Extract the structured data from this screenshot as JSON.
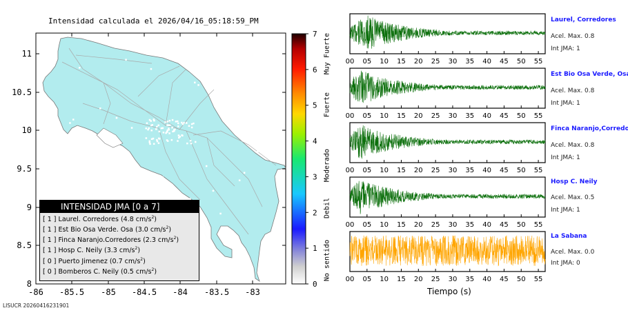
{
  "map": {
    "title": "Intensidad calculada el 2026/04/16_05:18:59_PM",
    "x_ticks": [
      "-86",
      "-85.5",
      "-85",
      "-84.5",
      "-84",
      "-83.5",
      "-83"
    ],
    "y_ticks": [
      "11",
      "10.5",
      "10",
      "9.5",
      "9",
      "8.5",
      "8"
    ],
    "land_color": "#b2ecee"
  },
  "colorbar": {
    "ticks": [
      "0",
      "1",
      "2",
      "3",
      "4",
      "5",
      "6",
      "7"
    ],
    "labels": [
      "No sentido",
      "Debil",
      "Moderado",
      "Fuerte",
      "Muy Fuerte"
    ]
  },
  "legend": {
    "title": "INTENSIDAD JMA [0 a 7]",
    "rows": [
      {
        "jma": "[ 1 ]",
        "text": "Laurel. Corredores (4.8 cm/s",
        "sup": "2",
        "close": ")"
      },
      {
        "jma": "[ 1 ]",
        "text": "Est Bio Osa Verde. Osa (3.0 cm/s",
        "sup": "2",
        "close": ")"
      },
      {
        "jma": "[ 1 ]",
        "text": "Finca Naranjo.Corredores (2.3 cm/s",
        "sup": "2",
        "close": ")"
      },
      {
        "jma": "[ 1 ]",
        "text": "Hosp C. Neily (3.3 cm/s",
        "sup": "2",
        "close": ")"
      },
      {
        "jma": "[ 0 ]",
        "text": "Puerto Jimenez (0.7 cm/s",
        "sup": "2",
        "close": ")"
      },
      {
        "jma": "[ 0 ]",
        "text": "Bomberos C. Neily (0.5 cm/s",
        "sup": "2",
        "close": ")"
      }
    ]
  },
  "footer": "LISUCR 20260416231901",
  "stations": [
    {
      "name": "Laurel, Corredores",
      "acc": "Acel. Max. 0.8",
      "jma": "Int JMA: 1",
      "color": "#0a6e0a"
    },
    {
      "name": "Est Bio Osa Verde, Osa",
      "acc": "Acel. Max. 0.8",
      "jma": "Int JMA: 1",
      "color": "#0a6e0a"
    },
    {
      "name": "Finca Naranjo,Corredores",
      "acc": "Acel. Max. 0.8",
      "jma": "Int JMA: 1",
      "color": "#0a6e0a"
    },
    {
      "name": "Hosp C. Neily",
      "acc": "Acel. Max. 0.5",
      "jma": "Int JMA: 1",
      "color": "#0a6e0a"
    },
    {
      "name": "La Sabana",
      "acc": "Acel. Max. 0.0",
      "jma": "Int JMA: 0",
      "color": "#ffa500"
    }
  ],
  "chart_data": {
    "type": "line",
    "title": "Intensidad calculada el 2026/04/16_05:18:59_PM",
    "xlabel": "Tiempo (s)",
    "x_ticks": [
      "00",
      "05",
      "10",
      "15",
      "20",
      "25",
      "30",
      "35",
      "40",
      "45",
      "50",
      "55"
    ],
    "xlim": [
      0,
      57
    ],
    "series": [
      {
        "name": "Laurel, Corredores",
        "peak_time": 5,
        "decay": "exponential"
      },
      {
        "name": "Est Bio Osa Verde, Osa",
        "peak_time": 3,
        "decay": "exponential"
      },
      {
        "name": "Finca Naranjo,Corredores",
        "peak_time": 3,
        "decay": "exponential"
      },
      {
        "name": "Hosp C. Neily",
        "peak_time": 3,
        "decay": "exponential"
      },
      {
        "name": "La Sabana",
        "peak_time": 0,
        "decay": "none"
      }
    ]
  }
}
